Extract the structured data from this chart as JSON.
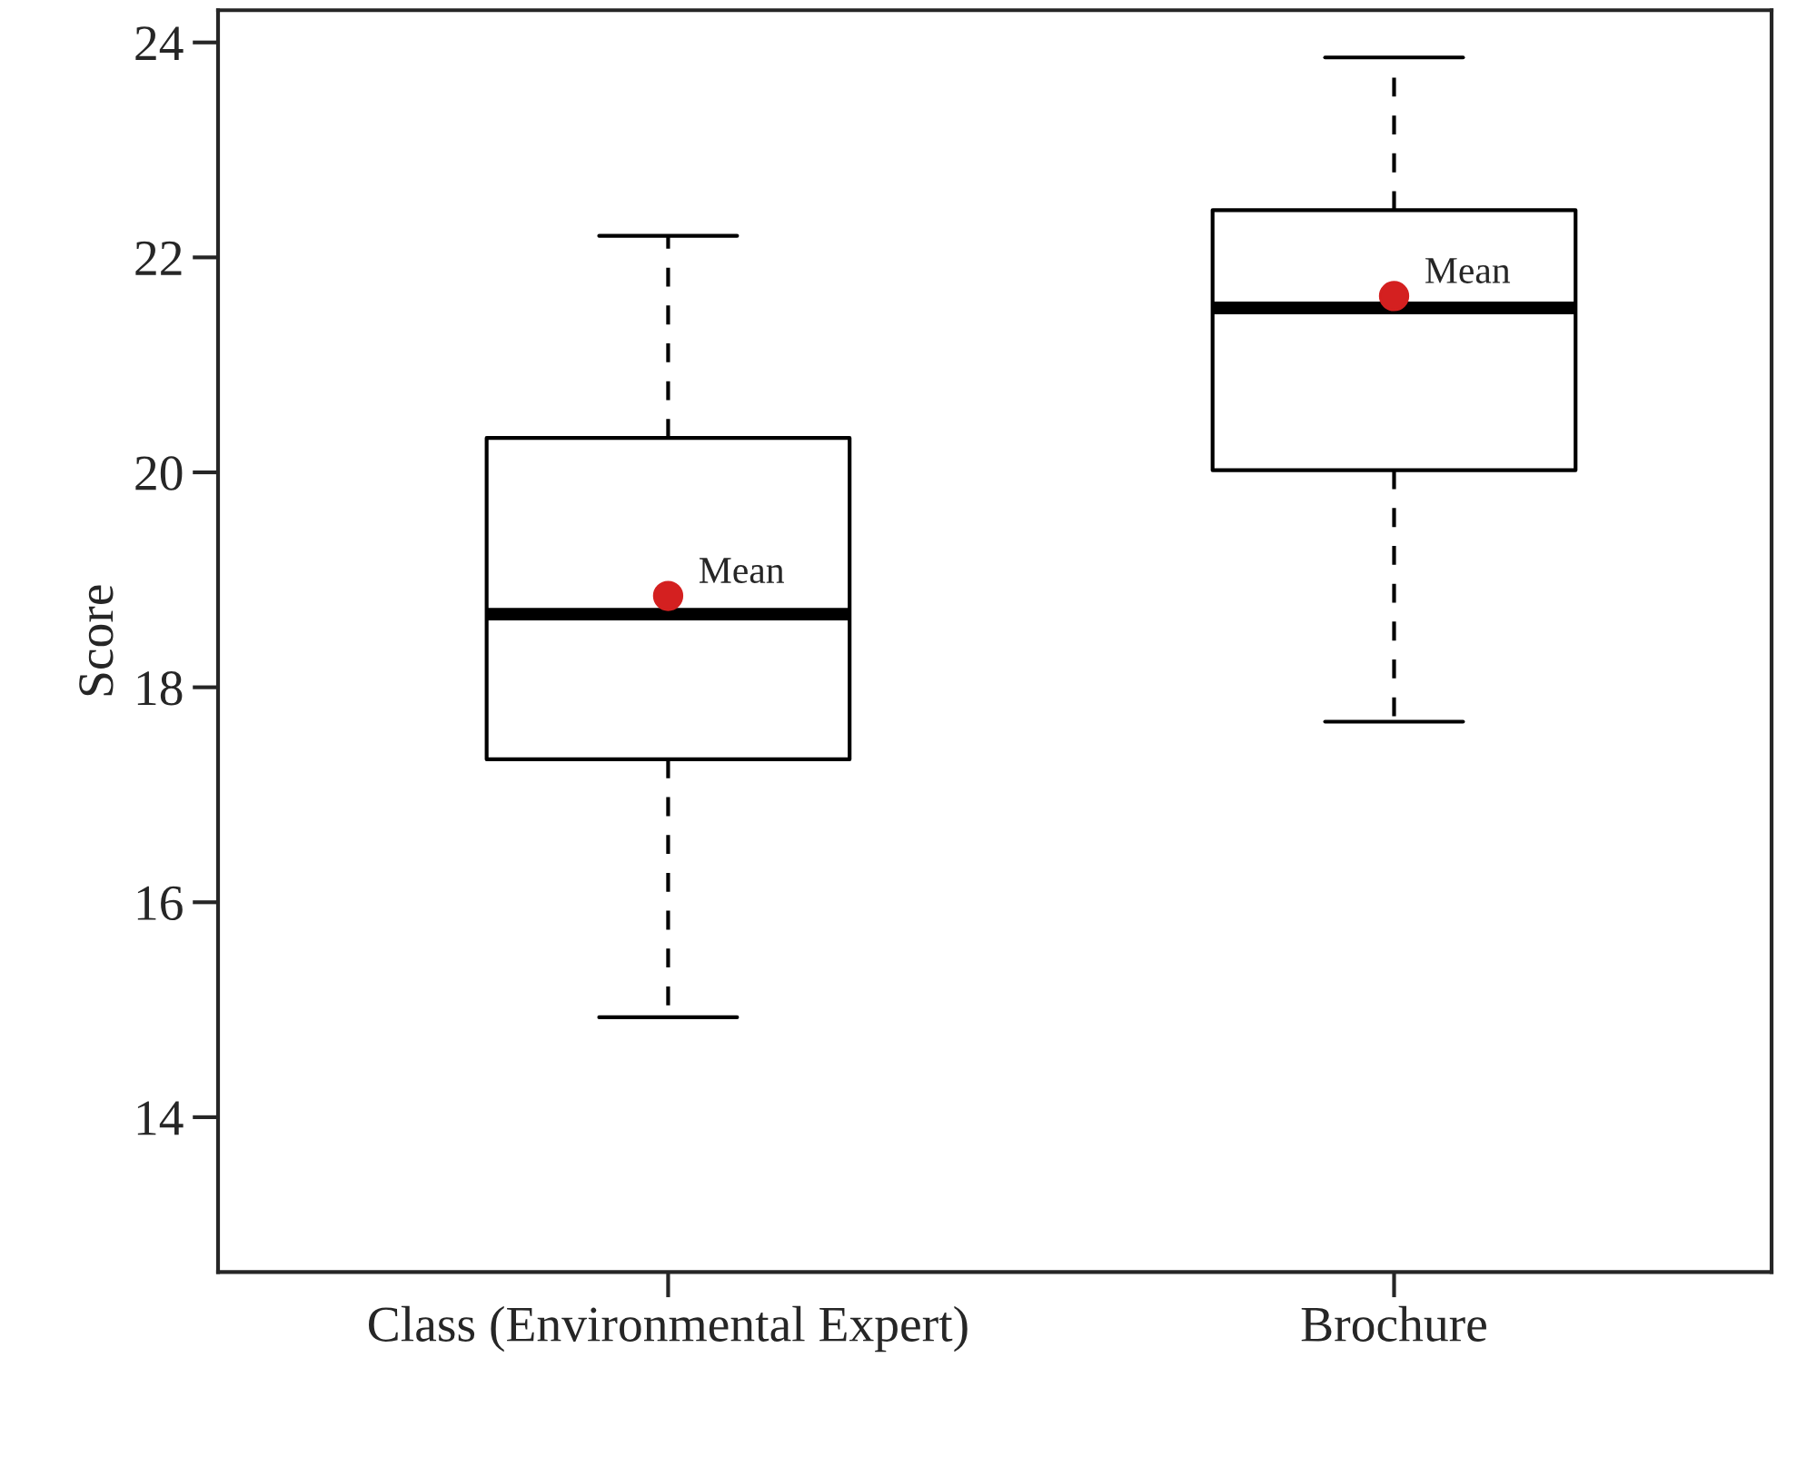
{
  "chart_data": {
    "type": "box",
    "ylabel": "Score",
    "categories": [
      "Class (Environmental Expert)",
      "Brochure"
    ],
    "boxes": [
      {
        "low": 14.93,
        "q1": 17.33,
        "median": 18.68,
        "q3": 20.32,
        "high": 22.2,
        "mean": 18.85
      },
      {
        "low": 17.68,
        "q1": 20.02,
        "median": 21.53,
        "q3": 22.44,
        "high": 23.86,
        "mean": 21.64
      }
    ],
    "ylim": [
      12.56,
      24.3
    ],
    "yticks": [
      14,
      16,
      18,
      20,
      22,
      24
    ],
    "grid": false,
    "legend": false,
    "annotations": [
      "Mean",
      "Mean"
    ]
  }
}
